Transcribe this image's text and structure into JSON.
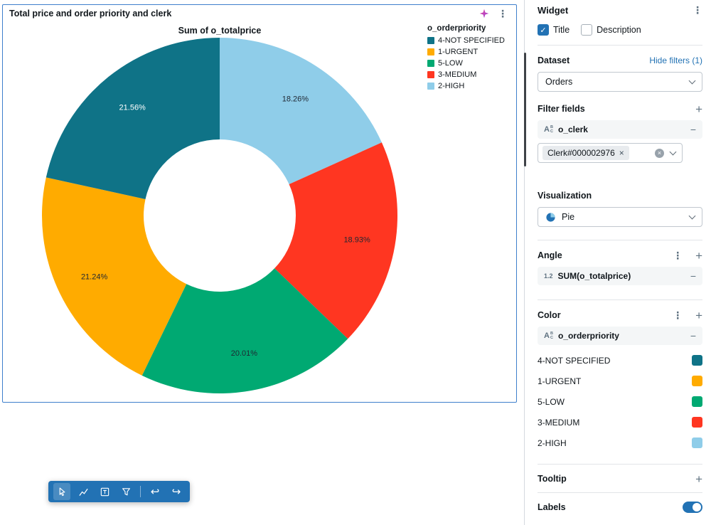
{
  "icons": {
    "kebab": "⋮",
    "plus": "+",
    "minus": "−",
    "close": "×",
    "check": "✓",
    "undo": "↩",
    "redo": "↪",
    "string_big": "A",
    "string_top": "B",
    "string_bottom": "C",
    "numeric": "1.2"
  },
  "card": {
    "title": "Total price and order priority and clerk"
  },
  "chart_data": {
    "type": "pie",
    "donut": true,
    "title": "Sum of o_totalprice",
    "legend_title": "o_orderpriority",
    "legend_position": "top-right",
    "unit": "percent",
    "slices": [
      {
        "label": "2-HIGH",
        "value": 18.26,
        "display": "18.26%",
        "color": "#8FCDE9",
        "text_color": "#1F2732"
      },
      {
        "label": "3-MEDIUM",
        "value": 18.93,
        "display": "18.93%",
        "color": "#FF3621",
        "text_color": "#1F2732"
      },
      {
        "label": "5-LOW",
        "value": 20.01,
        "display": "20.01%",
        "color": "#00A972",
        "text_color": "#1F2732"
      },
      {
        "label": "1-URGENT",
        "value": 21.24,
        "display": "21.24%",
        "color": "#FFAB00",
        "text_color": "#1F2732"
      },
      {
        "label": "4-NOT SPECIFIED",
        "value": 21.56,
        "display": "21.56%",
        "color": "#0F7387",
        "text_color": "#FFFFFF"
      }
    ],
    "legend": [
      {
        "label": "4-NOT SPECIFIED",
        "color": "#0F7387"
      },
      {
        "label": "1-URGENT",
        "color": "#FFAB00"
      },
      {
        "label": "5-LOW",
        "color": "#00A972"
      },
      {
        "label": "3-MEDIUM",
        "color": "#FF3621"
      },
      {
        "label": "2-HIGH",
        "color": "#8FCDE9"
      }
    ]
  },
  "panel": {
    "widget": {
      "title": "Widget",
      "title_label": "Title",
      "description_label": "Description",
      "title_checked": true,
      "description_checked": false
    },
    "dataset": {
      "label": "Dataset",
      "hide_filters": "Hide filters (1)",
      "selected": "Orders"
    },
    "filter_fields": {
      "label": "Filter fields",
      "field": "o_clerk",
      "value": "Clerk#000002976"
    },
    "visualization": {
      "label": "Visualization",
      "selected": "Pie"
    },
    "angle": {
      "label": "Angle",
      "field": "SUM(o_totalprice)"
    },
    "color": {
      "label": "Color",
      "field": "o_orderpriority",
      "mappings": [
        {
          "label": "4-NOT SPECIFIED",
          "color": "#0F7387"
        },
        {
          "label": "1-URGENT",
          "color": "#FFAB00"
        },
        {
          "label": "5-LOW",
          "color": "#00A972"
        },
        {
          "label": "3-MEDIUM",
          "color": "#FF3621"
        },
        {
          "label": "2-HIGH",
          "color": "#8FCDE9"
        }
      ]
    },
    "tooltip": {
      "label": "Tooltip"
    },
    "labels": {
      "label": "Labels",
      "enabled": true
    }
  },
  "toolbar": {
    "tools": [
      "select-tool",
      "chart-tool",
      "textbox-tool",
      "filter-tool",
      "undo",
      "redo"
    ],
    "accent_color": "#2272B4"
  }
}
